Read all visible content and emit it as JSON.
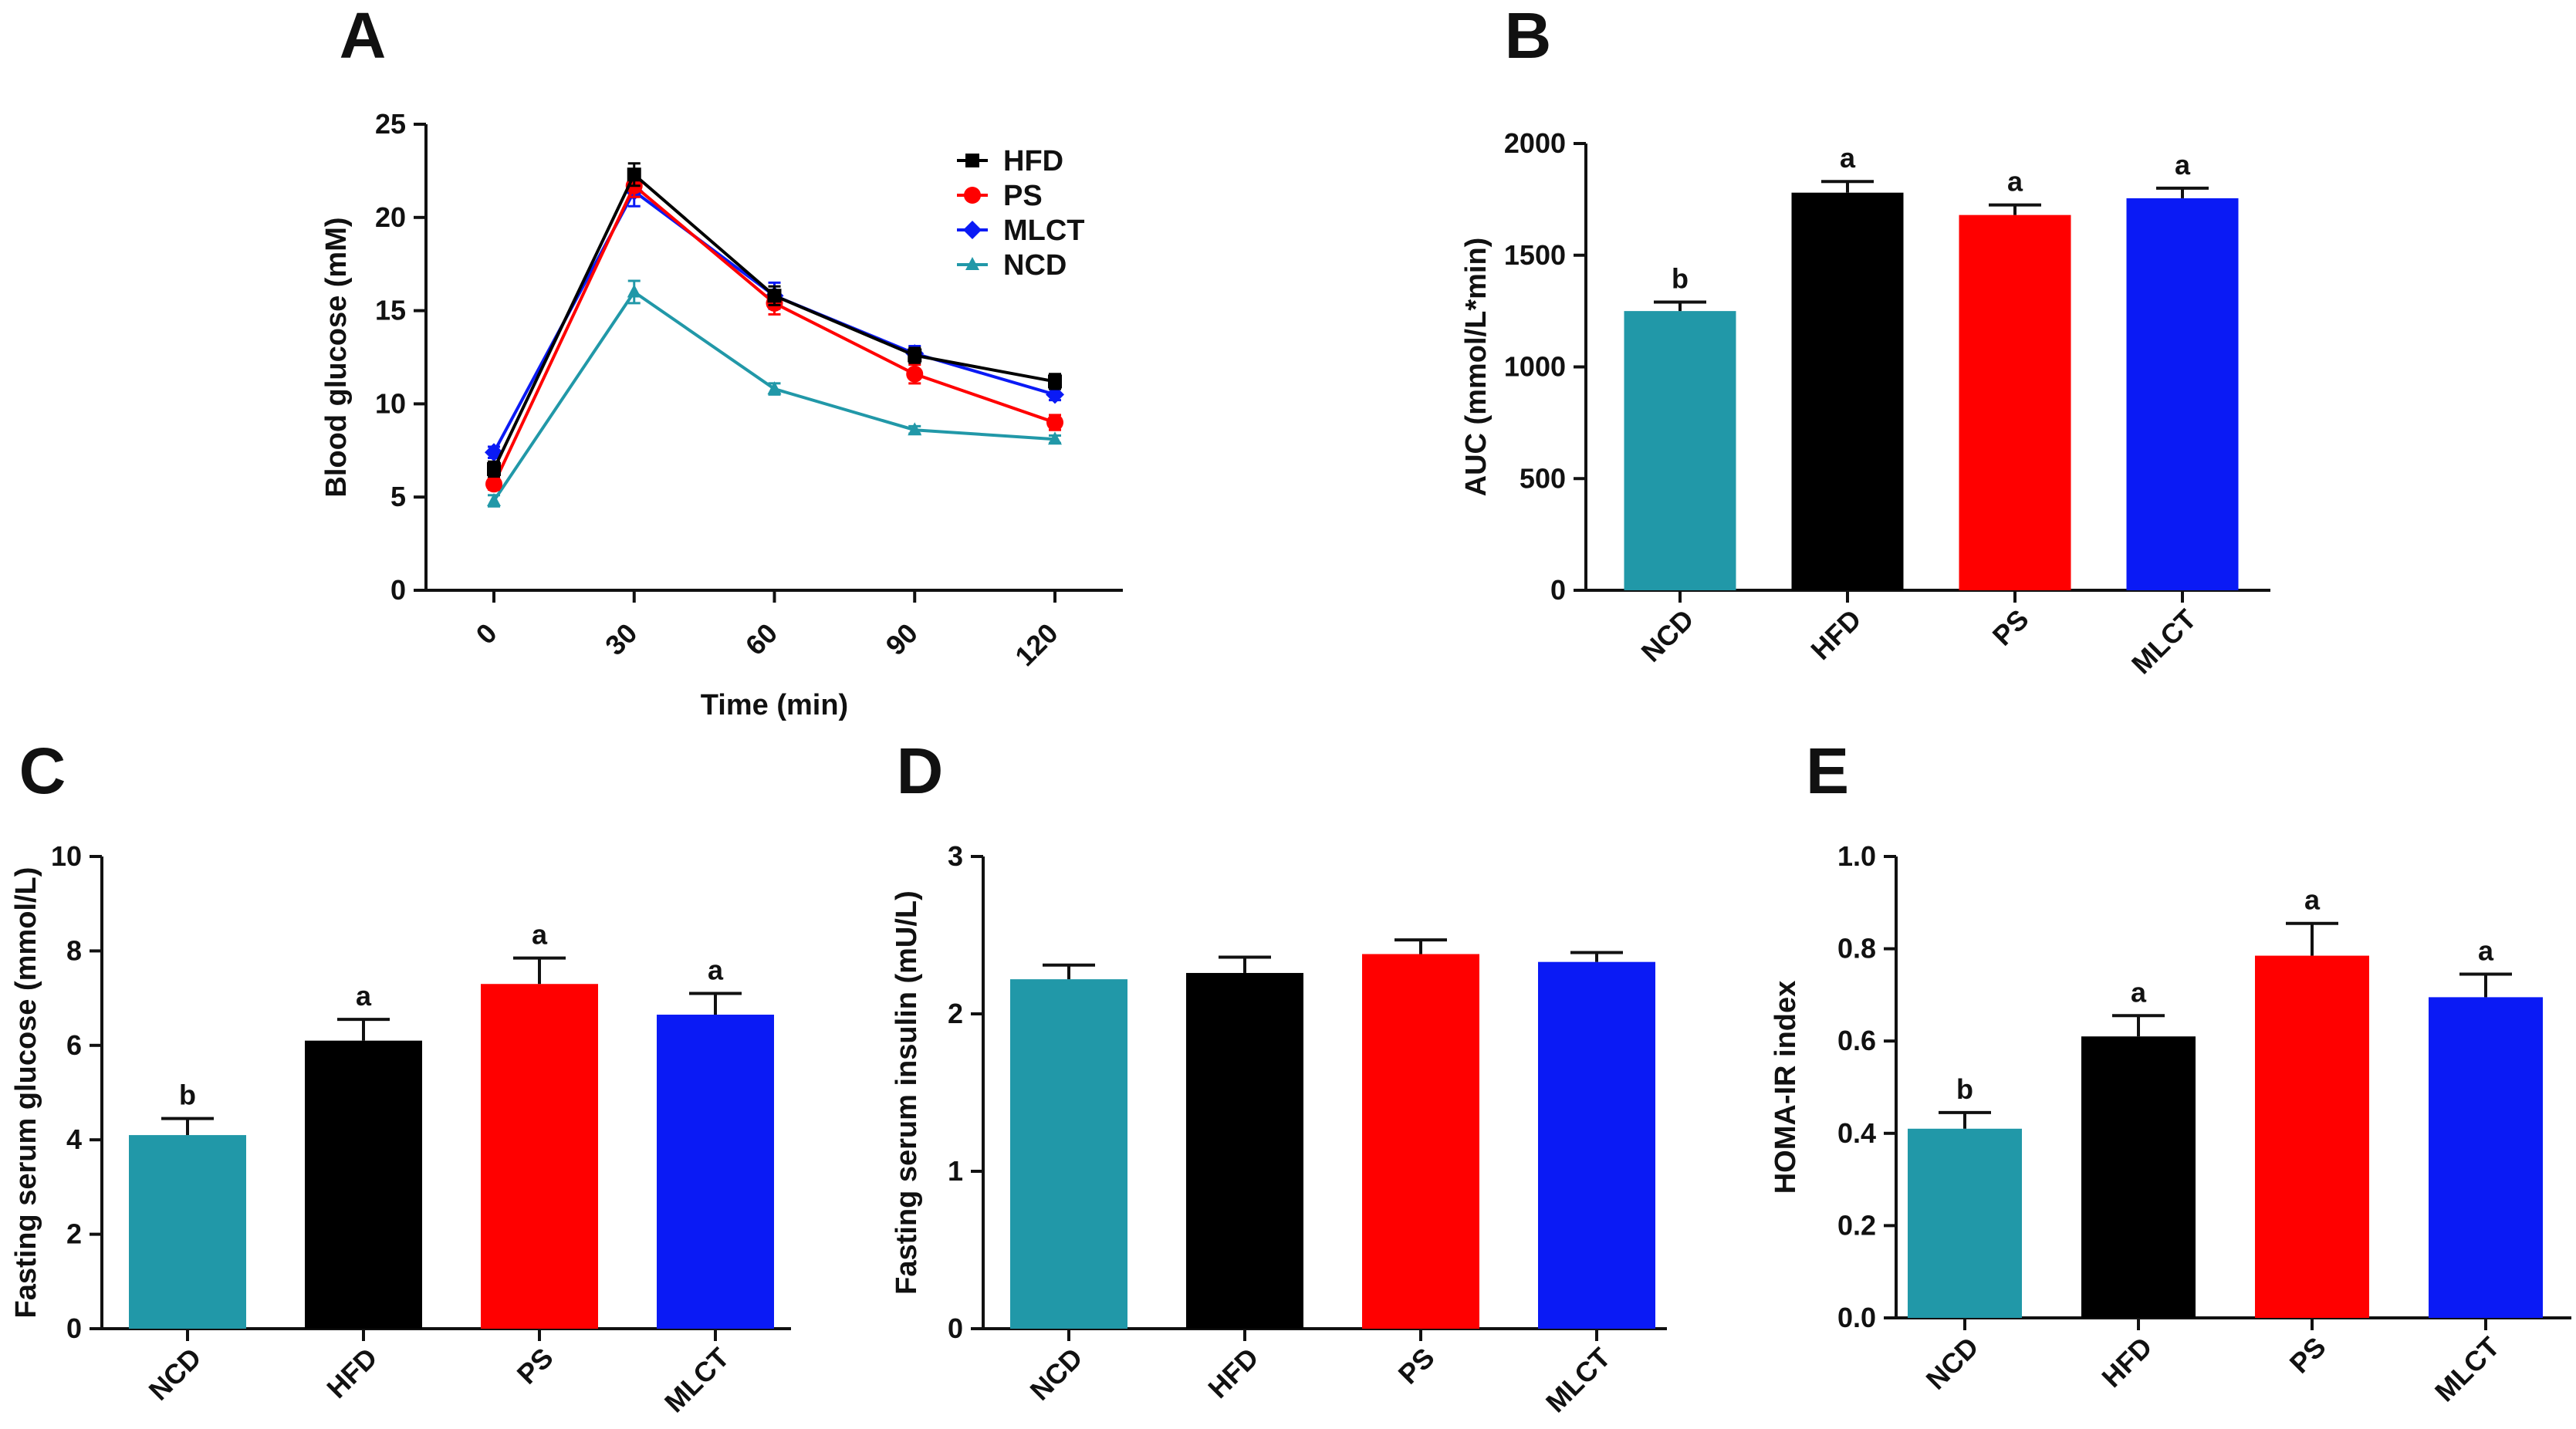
{
  "colors": {
    "NCD": "#2198A8",
    "HFD": "#000000",
    "PS": "#FF0000",
    "MLCT": "#0A1AF5",
    "axis": "#111111"
  },
  "chart_data": [
    {
      "id": "A",
      "panel_label": "A",
      "type": "line",
      "title": "",
      "xlabel": "Time (min)",
      "ylabel": "Blood glucose (mM)",
      "x": [
        0,
        30,
        60,
        90,
        120
      ],
      "x_tick_labels": [
        "0",
        "30",
        "60",
        "90",
        "120"
      ],
      "ylim": [
        0,
        25
      ],
      "y_ticks": [
        0,
        5,
        10,
        15,
        20,
        25
      ],
      "legend_position": "top-right",
      "series": [
        {
          "name": "HFD",
          "color": "#000000",
          "marker": "square",
          "values": [
            6.5,
            22.3,
            15.8,
            12.6,
            11.2
          ],
          "errors": [
            0.4,
            0.6,
            0.5,
            0.4,
            0.4
          ]
        },
        {
          "name": "PS",
          "color": "#FF0000",
          "marker": "circle",
          "values": [
            5.7,
            21.7,
            15.4,
            11.6,
            9.0
          ],
          "errors": [
            0.3,
            0.6,
            0.6,
            0.5,
            0.4
          ]
        },
        {
          "name": "MLCT",
          "color": "#0A1AF5",
          "marker": "diamond",
          "values": [
            7.4,
            21.4,
            15.8,
            12.7,
            10.5
          ],
          "errors": [
            0.3,
            0.8,
            0.7,
            0.4,
            0.3
          ]
        },
        {
          "name": "NCD",
          "color": "#2198A8",
          "marker": "triangle",
          "values": [
            4.8,
            16.0,
            10.8,
            8.6,
            8.1
          ],
          "errors": [
            0.3,
            0.6,
            0.3,
            0.2,
            0.2
          ]
        }
      ]
    },
    {
      "id": "B",
      "panel_label": "B",
      "type": "bar",
      "title": "",
      "xlabel": "",
      "ylabel": "AUC (mmol/L*min)",
      "categories": [
        "NCD",
        "HFD",
        "PS",
        "MLCT"
      ],
      "values": [
        1250,
        1780,
        1680,
        1755
      ],
      "errors": [
        40,
        50,
        45,
        45
      ],
      "significance": [
        "b",
        "a",
        "a",
        "a"
      ],
      "ylim": [
        0,
        2000
      ],
      "y_ticks": [
        0,
        500,
        1000,
        1500,
        2000
      ],
      "y_tick_labels": [
        "0",
        "500",
        "1000",
        "1500",
        "2000"
      ]
    },
    {
      "id": "C",
      "panel_label": "C",
      "type": "bar",
      "title": "",
      "xlabel": "",
      "ylabel": "Fasting serum glucose (mmol/L)",
      "categories": [
        "NCD",
        "HFD",
        "PS",
        "MLCT"
      ],
      "values": [
        4.1,
        6.1,
        7.3,
        6.65
      ],
      "errors": [
        0.35,
        0.45,
        0.55,
        0.45
      ],
      "significance": [
        "b",
        "a",
        "a",
        "a"
      ],
      "ylim": [
        0,
        10
      ],
      "y_ticks": [
        0,
        2,
        4,
        6,
        8,
        10
      ],
      "y_tick_labels": [
        "0",
        "2",
        "4",
        "6",
        "8",
        "10"
      ]
    },
    {
      "id": "D",
      "panel_label": "D",
      "type": "bar",
      "title": "",
      "xlabel": "",
      "ylabel": "Fasting serum insulin (mU/L)",
      "categories": [
        "NCD",
        "HFD",
        "PS",
        "MLCT"
      ],
      "values": [
        2.22,
        2.26,
        2.38,
        2.33
      ],
      "errors": [
        0.09,
        0.1,
        0.09,
        0.06
      ],
      "significance": [
        "",
        "",
        "",
        ""
      ],
      "ylim": [
        0,
        3
      ],
      "y_ticks": [
        0,
        1,
        2,
        3
      ],
      "y_tick_labels": [
        "0",
        "1",
        "2",
        "3"
      ]
    },
    {
      "id": "E",
      "panel_label": "E",
      "type": "bar",
      "title": "",
      "xlabel": "",
      "ylabel": "HOMA-IR index",
      "categories": [
        "NCD",
        "HFD",
        "PS",
        "MLCT"
      ],
      "values": [
        0.41,
        0.61,
        0.785,
        0.695
      ],
      "errors": [
        0.035,
        0.045,
        0.07,
        0.05
      ],
      "significance": [
        "b",
        "a",
        "a",
        "a"
      ],
      "ylim": [
        0,
        1.0
      ],
      "y_ticks": [
        0,
        0.2,
        0.4,
        0.6,
        0.8,
        1.0
      ],
      "y_tick_labels": [
        "0.0",
        "0.2",
        "0.4",
        "0.6",
        "0.8",
        "1.0"
      ]
    }
  ]
}
